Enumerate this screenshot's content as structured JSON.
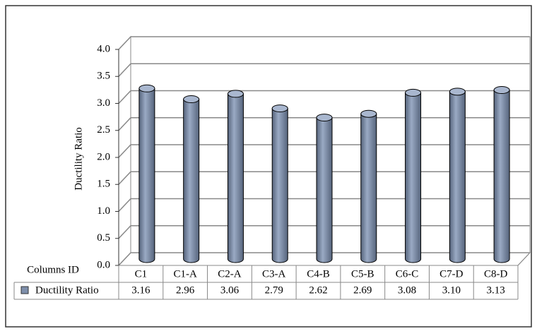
{
  "chart_data": {
    "type": "bar3d",
    "x_label": "Columns ID",
    "y_label": "Ductility Ratio",
    "categories": [
      "C1",
      "C1-A",
      "C2-A",
      "C3-A",
      "C4-B",
      "C5-B",
      "C6-C",
      "C7-D",
      "C8-D"
    ],
    "series": [
      {
        "name": "Ductility Ratio",
        "color": "#7e8fab",
        "values": [
          3.16,
          2.96,
          3.06,
          2.79,
          2.62,
          2.69,
          3.08,
          3.1,
          3.13
        ],
        "value_labels": [
          "3.16",
          "2.96",
          "3.06",
          "2.79",
          "2.62",
          "2.69",
          "3.08",
          "3.10",
          "3.13"
        ]
      }
    ],
    "ylim": [
      0,
      4
    ],
    "yticks": [
      {
        "value": 0,
        "label": "0.0"
      },
      0.5,
      {
        "value": 1,
        "label": "1.0"
      },
      1.5,
      {
        "value": 2,
        "label": "2.0"
      },
      2.5,
      {
        "value": 3,
        "label": "3.0"
      },
      3.5,
      {
        "value": 4,
        "label": "4.0"
      }
    ],
    "grid": true
  }
}
